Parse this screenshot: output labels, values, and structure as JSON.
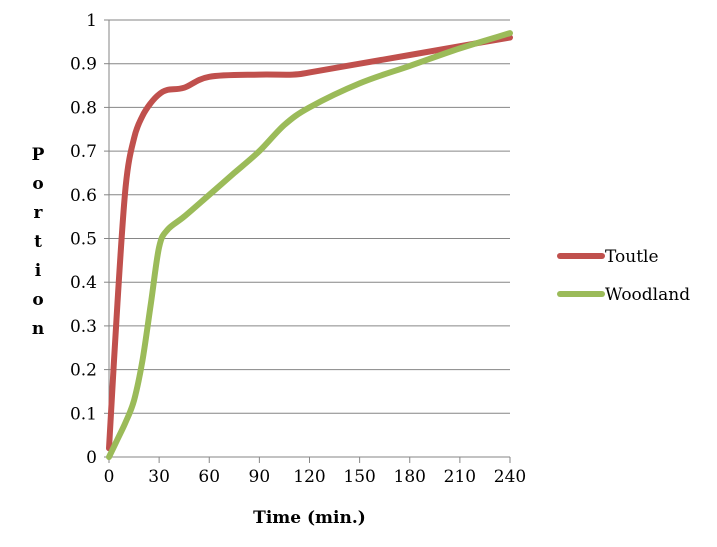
{
  "chart_data": {
    "type": "line",
    "title": "",
    "xlabel": "Time (min.)",
    "ylabel": "Portion",
    "xlim": [
      0,
      240
    ],
    "ylim": [
      0,
      1
    ],
    "xticks": [
      0,
      30,
      60,
      90,
      120,
      150,
      180,
      210,
      240
    ],
    "yticks": [
      0,
      0.1,
      0.2,
      0.3,
      0.4,
      0.5,
      0.6,
      0.7,
      0.8,
      0.9,
      1
    ],
    "grid": "horizontal",
    "legend_position": "right",
    "series": [
      {
        "name": "Toutle",
        "color": "#c0504d",
        "points": [
          [
            0,
            0.02
          ],
          [
            5,
            0.35
          ],
          [
            10,
            0.62
          ],
          [
            15,
            0.73
          ],
          [
            20,
            0.78
          ],
          [
            25,
            0.81
          ],
          [
            30,
            0.83
          ],
          [
            35,
            0.84
          ],
          [
            45,
            0.845
          ],
          [
            60,
            0.87
          ],
          [
            90,
            0.875
          ],
          [
            110,
            0.875
          ],
          [
            120,
            0.88
          ],
          [
            150,
            0.9
          ],
          [
            180,
            0.92
          ],
          [
            210,
            0.94
          ],
          [
            240,
            0.96
          ]
        ]
      },
      {
        "name": "Woodland",
        "color": "#9bbb59",
        "points": [
          [
            0,
            0.0
          ],
          [
            5,
            0.04
          ],
          [
            10,
            0.08
          ],
          [
            15,
            0.13
          ],
          [
            20,
            0.22
          ],
          [
            25,
            0.35
          ],
          [
            30,
            0.48
          ],
          [
            35,
            0.52
          ],
          [
            45,
            0.55
          ],
          [
            60,
            0.6
          ],
          [
            75,
            0.65
          ],
          [
            90,
            0.7
          ],
          [
            105,
            0.76
          ],
          [
            120,
            0.8
          ],
          [
            150,
            0.855
          ],
          [
            180,
            0.895
          ],
          [
            210,
            0.935
          ],
          [
            240,
            0.97
          ]
        ]
      }
    ]
  }
}
